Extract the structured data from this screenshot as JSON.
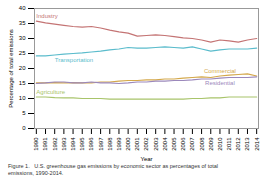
{
  "chart_data": {
    "type": "line",
    "xlabel": "Year",
    "ylabel": "Percentage of total emissions",
    "caption": [
      "Figure 1.   U.S. greenhouse gas emissions by economic sector as percentages of total",
      "emissions, 1990-2014."
    ],
    "x": [
      1990,
      1991,
      1992,
      1993,
      1994,
      1995,
      1996,
      1997,
      1998,
      1999,
      2000,
      2001,
      2002,
      2003,
      2004,
      2005,
      2006,
      2007,
      2008,
      2009,
      2010,
      2011,
      2012,
      2013,
      2014
    ],
    "series": [
      {
        "name": "Industry",
        "color": "#c47474",
        "values": [
          35.8,
          35.2,
          34.8,
          34.4,
          34.0,
          33.8,
          34.0,
          33.5,
          32.8,
          32.2,
          31.8,
          30.8,
          31.0,
          31.2,
          31.0,
          30.6,
          30.2,
          30.0,
          29.5,
          28.8,
          29.5,
          29.2,
          28.8,
          29.5,
          30.0
        ]
      },
      {
        "name": "Transportation",
        "color": "#5bbccc",
        "values": [
          24.2,
          24.2,
          24.5,
          24.8,
          25.0,
          25.2,
          25.5,
          25.8,
          26.2,
          26.5,
          27.0,
          26.8,
          26.8,
          27.0,
          27.2,
          27.0,
          26.8,
          27.2,
          26.5,
          25.8,
          26.2,
          26.5,
          26.5,
          26.5,
          26.8
        ]
      },
      {
        "name": "Commercial",
        "color": "#d4a84b",
        "values": [
          15.2,
          15.2,
          15.3,
          15.2,
          15.3,
          15.2,
          15.2,
          15.5,
          15.5,
          15.8,
          16.0,
          16.0,
          16.2,
          16.2,
          16.5,
          16.5,
          16.8,
          17.0,
          17.2,
          17.0,
          17.5,
          17.8,
          18.0,
          18.2,
          17.5
        ]
      },
      {
        "name": "Residential",
        "color": "#9b88bb",
        "values": [
          15.0,
          15.2,
          15.5,
          15.5,
          15.2,
          15.2,
          15.5,
          15.2,
          15.2,
          15.0,
          15.2,
          15.5,
          15.5,
          15.8,
          15.8,
          16.0,
          16.0,
          16.2,
          16.5,
          16.5,
          16.8,
          17.0,
          17.0,
          17.0,
          17.2
        ]
      },
      {
        "name": "Agriculture",
        "color": "#a8c46a",
        "values": [
          10.5,
          10.5,
          10.3,
          10.2,
          10.2,
          10.0,
          10.0,
          10.0,
          9.8,
          9.8,
          9.8,
          9.8,
          9.8,
          9.8,
          9.8,
          9.8,
          9.8,
          10.0,
          10.0,
          10.2,
          10.2,
          10.5,
          10.5,
          10.5,
          10.5
        ]
      }
    ],
    "xlim": [
      1989.8,
      2014.2
    ],
    "xticks": [
      1990,
      1991,
      1992,
      1993,
      1994,
      1995,
      1996,
      1997,
      1998,
      1999,
      2000,
      2001,
      2002,
      2003,
      2004,
      2005,
      2006,
      2007,
      2008,
      2009,
      2010,
      2011,
      2012,
      2013,
      2014
    ],
    "ylim": [
      0,
      40
    ],
    "yticks": [
      0,
      5,
      10,
      15,
      20,
      25,
      30,
      35,
      40
    ],
    "grid": false
  }
}
